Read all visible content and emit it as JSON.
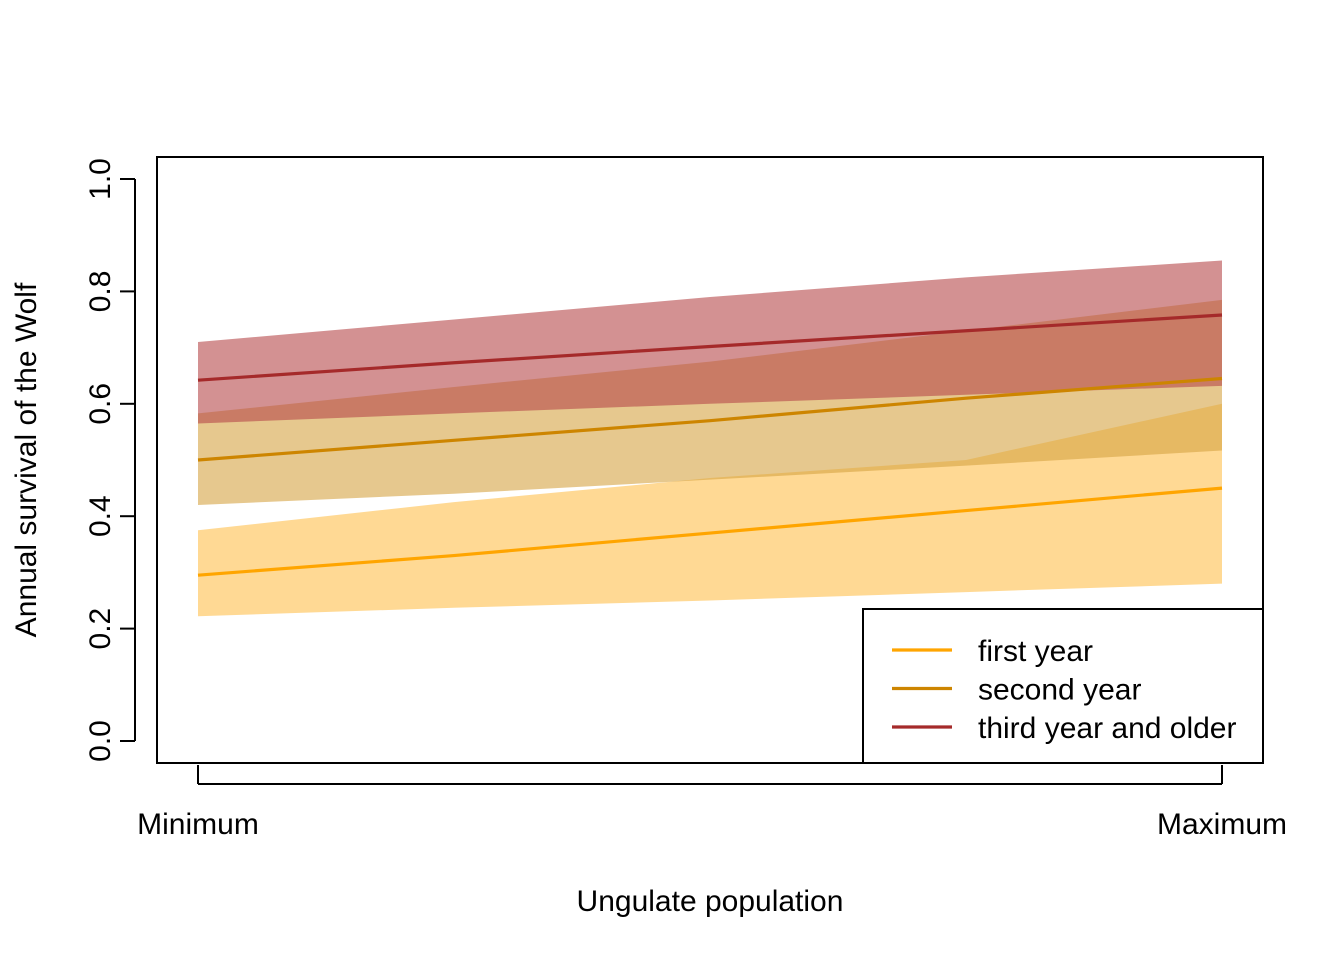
{
  "chart_data": {
    "type": "line",
    "subtype": "line with shaded confidence bands",
    "title": "",
    "xlabel": "Ungulate population",
    "ylabel": "Annual survival of the Wolf",
    "x": [
      0,
      0.25,
      0.5,
      0.75,
      1
    ],
    "x_tick_labels": [
      "Minimum",
      "Maximum"
    ],
    "ylim": [
      0,
      1
    ],
    "y_ticks": [
      "0.0",
      "0.2",
      "0.4",
      "0.6",
      "0.8",
      "1.0"
    ],
    "grid": false,
    "legend_position": "bottom-right",
    "series": [
      {
        "name": "first year",
        "color": "#FFA500",
        "band_color": "#FFC04C",
        "values": [
          0.295,
          0.33,
          0.37,
          0.41,
          0.45
        ],
        "lower": [
          0.222,
          0.237,
          0.25,
          0.265,
          0.28
        ],
        "upper": [
          0.375,
          0.425,
          0.468,
          0.5,
          0.6
        ]
      },
      {
        "name": "second year",
        "color": "#CD8500",
        "band_color": "#D6A442",
        "values": [
          0.5,
          0.535,
          0.57,
          0.61,
          0.645
        ],
        "lower": [
          0.42,
          0.44,
          0.465,
          0.49,
          0.517
        ],
        "upper": [
          0.583,
          0.63,
          0.675,
          0.73,
          0.785
        ]
      },
      {
        "name": "third year and older",
        "color": "#A52A2A",
        "band_color": "#B5474A",
        "values": [
          0.642,
          0.673,
          0.702,
          0.73,
          0.758
        ],
        "lower": [
          0.565,
          0.583,
          0.6,
          0.616,
          0.632
        ],
        "upper": [
          0.71,
          0.75,
          0.79,
          0.825,
          0.855
        ]
      }
    ]
  }
}
